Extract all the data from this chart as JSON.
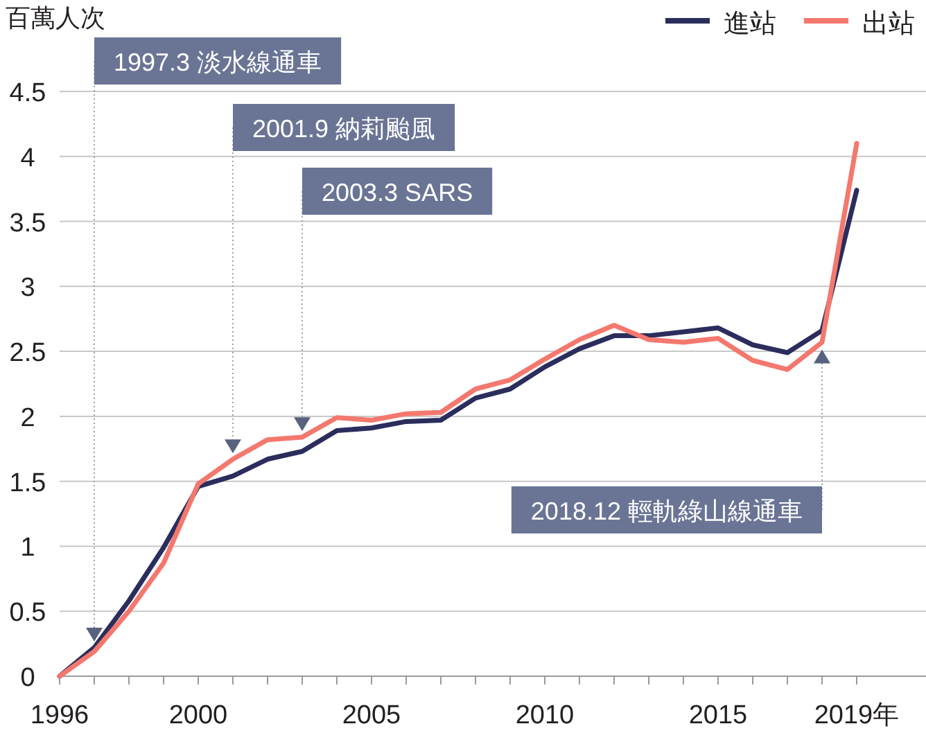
{
  "chart_data": {
    "type": "line",
    "ylabel": "百萬人次",
    "legend": "top right",
    "grid": "y",
    "line_style": "solid",
    "x": [
      1996,
      1997,
      1998,
      1999,
      2000,
      2001,
      2002,
      2003,
      2004,
      2005,
      2006,
      2007,
      2008,
      2009,
      2010,
      2011,
      2012,
      2013,
      2014,
      2015,
      2016,
      2017,
      2018,
      2019
    ],
    "series": [
      {
        "name": "進站",
        "color": "#2b2d5c",
        "values": [
          0,
          0.22,
          0.58,
          0.99,
          1.46,
          1.54,
          1.67,
          1.73,
          1.89,
          1.91,
          1.96,
          1.97,
          2.14,
          2.21,
          2.38,
          2.52,
          2.62,
          2.62,
          2.65,
          2.68,
          2.55,
          2.49,
          2.66,
          3.74
        ]
      },
      {
        "name": "出站",
        "color": "#f4786e",
        "values": [
          0,
          0.19,
          0.5,
          0.87,
          1.48,
          1.67,
          1.82,
          1.84,
          1.99,
          1.97,
          2.02,
          2.03,
          2.21,
          2.28,
          2.44,
          2.59,
          2.7,
          2.59,
          2.57,
          2.6,
          2.43,
          2.36,
          2.57,
          4.1
        ]
      }
    ],
    "xlim": [
      1996,
      2021
    ],
    "xticks": [
      1996,
      {
        "value": 1997,
        "label": null
      },
      {
        "value": 1998,
        "label": null
      },
      {
        "value": 1999,
        "label": null
      },
      2000,
      {
        "value": 2001,
        "label": null
      },
      {
        "value": 2002,
        "label": null
      },
      {
        "value": 2003,
        "label": null
      },
      {
        "value": 2004,
        "label": null
      },
      2005,
      {
        "value": 2006,
        "label": null
      },
      {
        "value": 2007,
        "label": null
      },
      {
        "value": 2008,
        "label": null
      },
      {
        "value": 2009,
        "label": null
      },
      2010,
      {
        "value": 2011,
        "label": null
      },
      {
        "value": 2012,
        "label": null
      },
      {
        "value": 2013,
        "label": null
      },
      {
        "value": 2014,
        "label": null
      },
      2015,
      {
        "value": 2016,
        "label": null
      },
      {
        "value": 2017,
        "label": null
      },
      {
        "value": 2018,
        "label": null
      },
      {
        "value": 2019,
        "label": "2019年"
      }
    ],
    "ylim": [
      0,
      4.5
    ],
    "yticks": [
      0,
      0.5,
      1,
      1.5,
      2,
      2.5,
      3,
      3.5,
      4,
      4.5
    ],
    "annotations": [
      {
        "text": "1997.3 淡水線通車",
        "x": 1997,
        "y": 0.33
      },
      {
        "text": "2001.9 納莉颱風",
        "x": 2001,
        "y": 1.78
      },
      {
        "text": "2003.3 SARS",
        "x": 2003,
        "y": 1.95
      },
      {
        "text": "2018.12 輕軌綠山線通車",
        "x": 2018,
        "y": 2.45
      }
    ]
  }
}
